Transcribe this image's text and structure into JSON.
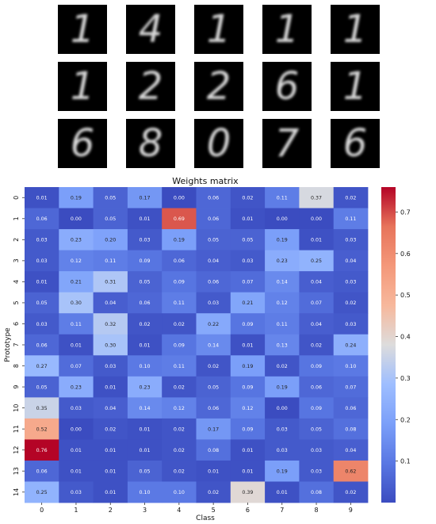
{
  "prototypes": {
    "digits": [
      "1",
      "4",
      "1",
      "1",
      "1",
      "1",
      "2",
      "2",
      "6",
      "1",
      "6",
      "8",
      "0",
      "7",
      "6"
    ]
  },
  "chart_data": {
    "type": "heatmap",
    "title": "Weights matrix",
    "xlabel": "Class",
    "ylabel": "Prototype",
    "x_tick_labels": [
      "0",
      "1",
      "2",
      "3",
      "4",
      "5",
      "6",
      "7",
      "8",
      "9"
    ],
    "y_tick_labels": [
      "0",
      "1",
      "2",
      "3",
      "4",
      "5",
      "6",
      "7",
      "8",
      "9",
      "10",
      "11",
      "12",
      "13",
      "14"
    ],
    "colormap": "coolwarm",
    "vmin": 0.0,
    "vmax": 0.76,
    "colorbar_ticks": [
      0.1,
      0.2,
      0.3,
      0.4,
      0.5,
      0.6,
      0.7
    ],
    "values": [
      [
        0.01,
        0.19,
        0.05,
        0.17,
        0.0,
        0.06,
        0.02,
        0.11,
        0.37,
        0.02
      ],
      [
        0.06,
        0.0,
        0.05,
        0.01,
        0.69,
        0.06,
        0.01,
        0.0,
        0.0,
        0.11
      ],
      [
        0.03,
        0.23,
        0.2,
        0.03,
        0.19,
        0.05,
        0.05,
        0.19,
        0.01,
        0.03
      ],
      [
        0.03,
        0.12,
        0.11,
        0.09,
        0.06,
        0.04,
        0.03,
        0.23,
        0.25,
        0.04
      ],
      [
        0.01,
        0.21,
        0.31,
        0.05,
        0.09,
        0.06,
        0.07,
        0.14,
        0.04,
        0.03
      ],
      [
        0.05,
        0.3,
        0.04,
        0.06,
        0.11,
        0.03,
        0.21,
        0.12,
        0.07,
        0.02
      ],
      [
        0.03,
        0.11,
        0.32,
        0.02,
        0.02,
        0.22,
        0.09,
        0.11,
        0.04,
        0.03
      ],
      [
        0.06,
        0.01,
        0.3,
        0.01,
        0.09,
        0.14,
        0.01,
        0.13,
        0.02,
        0.24
      ],
      [
        0.27,
        0.07,
        0.03,
        0.1,
        0.11,
        0.02,
        0.19,
        0.02,
        0.09,
        0.1
      ],
      [
        0.05,
        0.23,
        0.01,
        0.23,
        0.02,
        0.05,
        0.09,
        0.19,
        0.06,
        0.07
      ],
      [
        0.35,
        0.03,
        0.04,
        0.14,
        0.12,
        0.06,
        0.12,
        0.0,
        0.09,
        0.06
      ],
      [
        0.52,
        0.0,
        0.02,
        0.01,
        0.02,
        0.17,
        0.09,
        0.03,
        0.05,
        0.08
      ],
      [
        0.76,
        0.01,
        0.01,
        0.01,
        0.02,
        0.08,
        0.01,
        0.03,
        0.03,
        0.04
      ],
      [
        0.06,
        0.01,
        0.01,
        0.05,
        0.02,
        0.01,
        0.01,
        0.19,
        0.03,
        0.62
      ],
      [
        0.25,
        0.03,
        0.01,
        0.1,
        0.1,
        0.02,
        0.39,
        0.01,
        0.08,
        0.02
      ]
    ]
  }
}
